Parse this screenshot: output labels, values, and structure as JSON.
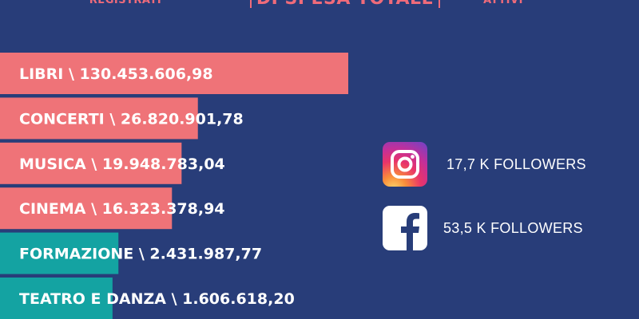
{
  "header": {
    "left_label": "REGISTRATI",
    "center_label": "DI SPESA TOTALE",
    "right_label": "ATTIVI"
  },
  "colors": {
    "background": "#283d79",
    "accent": "#ef6b7a",
    "teal": "#14a3a2",
    "text": "#ffffff"
  },
  "chart_data": {
    "type": "bar",
    "orientation": "horizontal",
    "categories": [
      "LIBRI",
      "CONCERTI",
      "MUSICA",
      "CINEMA",
      "FORMAZIONE",
      "TEATRO E DANZA"
    ],
    "values": [
      130453606.98,
      26820901.78,
      19948783.04,
      16323378.94,
      2431987.77,
      1606618.2
    ],
    "labels": [
      "LIBRI \\ 130.453.606,98",
      "CONCERTI \\ 26.820.901,78",
      "MUSICA \\ 19.948.783,04",
      "CINEMA \\ 16.323.378,94",
      "FORMAZIONE \\ 2.431.987,77",
      "TEATRO E DANZA \\ 1.606.618,20"
    ],
    "bar_colors": [
      "#ef7378",
      "#ef7378",
      "#ef7378",
      "#ef7378",
      "#14a3a2",
      "#14a3a2"
    ]
  },
  "social": {
    "instagram": {
      "icon": "instagram-icon",
      "text": "17,7 K FOLLOWERS"
    },
    "facebook": {
      "icon": "facebook-icon",
      "text": "53,5 K FOLLOWERS"
    }
  }
}
